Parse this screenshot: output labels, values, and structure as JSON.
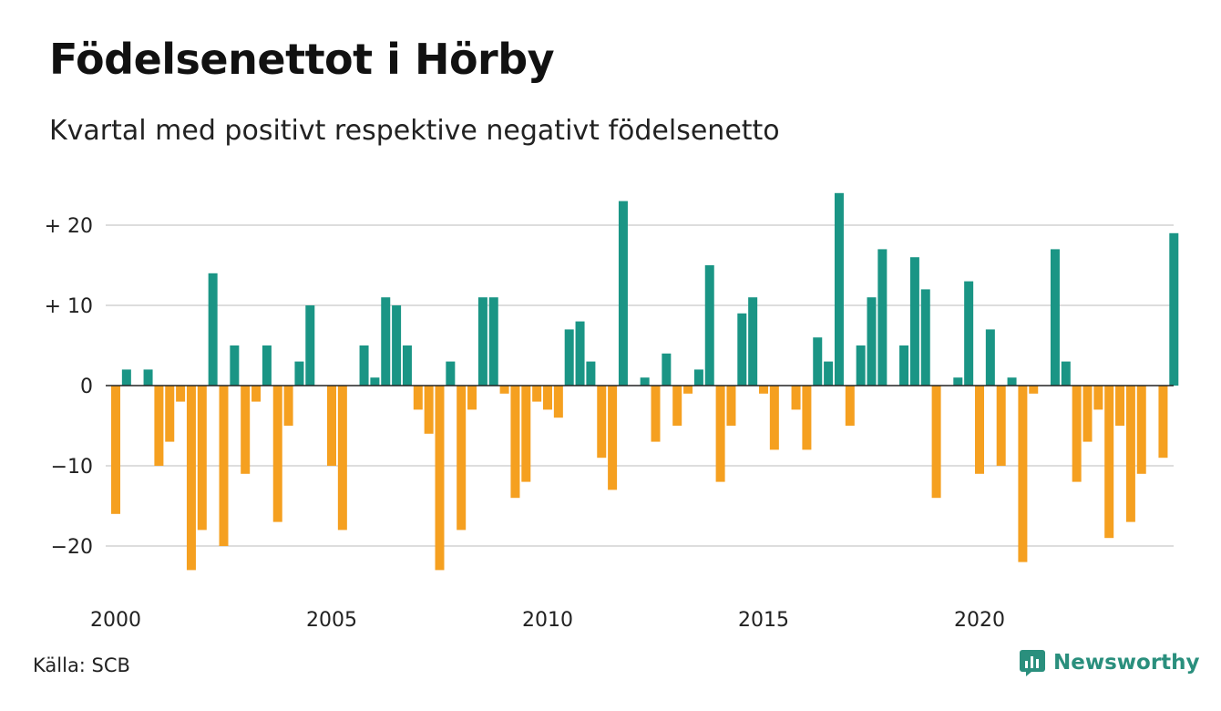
{
  "title": "Födelsenettot i Hörby",
  "subtitle": "Kvartal med positivt respektive negativt födelsenetto",
  "source": "Källa: SCB",
  "brand": "Newsworthy",
  "colors": {
    "positive": "#1a9585",
    "negative": "#f5a020",
    "grid": "#dddddd",
    "brand": "#2a8f7d"
  },
  "chart_data": {
    "type": "bar",
    "x_start": "2000 Q1",
    "y_ticks": [
      {
        "value": 20,
        "label": "+ 20"
      },
      {
        "value": 10,
        "label": "+ 10"
      },
      {
        "value": 0,
        "label": "0"
      },
      {
        "value": -10,
        "label": "−10"
      },
      {
        "value": -20,
        "label": "−20"
      }
    ],
    "x_ticks": [
      {
        "year": 2000,
        "label": "2000"
      },
      {
        "year": 2005,
        "label": "2005"
      },
      {
        "year": 2010,
        "label": "2010"
      },
      {
        "year": 2015,
        "label": "2015"
      },
      {
        "year": 2020,
        "label": "2020"
      }
    ],
    "ylim": [
      -26,
      25
    ],
    "values": [
      -16,
      2,
      0,
      2,
      -10,
      -7,
      -2,
      -23,
      -18,
      14,
      -20,
      5,
      -11,
      -2,
      5,
      -17,
      -5,
      3,
      10,
      0,
      -10,
      -18,
      0,
      5,
      1,
      11,
      10,
      5,
      -3,
      -6,
      -23,
      3,
      -18,
      -3,
      11,
      11,
      -1,
      -14,
      -12,
      -2,
      -3,
      -4,
      7,
      8,
      3,
      -9,
      -13,
      23,
      0,
      1,
      -7,
      4,
      -5,
      -1,
      2,
      15,
      -12,
      -5,
      9,
      11,
      -1,
      -8,
      0,
      -3,
      -8,
      6,
      3,
      24,
      -5,
      5,
      11,
      17,
      0,
      5,
      16,
      12,
      -14,
      0,
      1,
      13,
      -11,
      7,
      -10,
      1,
      -22,
      -1,
      0,
      17,
      3,
      -12,
      -7,
      -3,
      -19,
      -5,
      -17,
      -11,
      0,
      -9,
      19
    ]
  }
}
